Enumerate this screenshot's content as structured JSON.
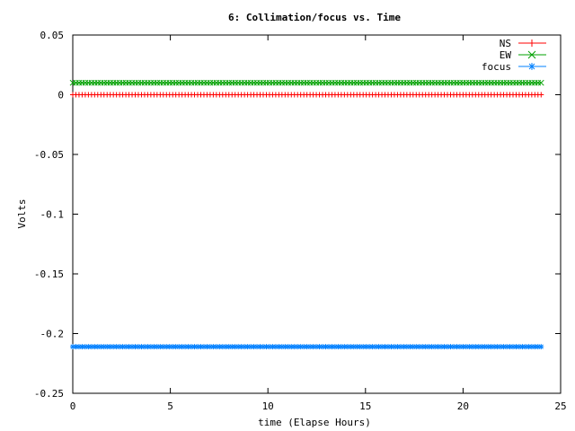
{
  "chart_data": {
    "type": "line",
    "title": "6: Collimation/focus vs. Time",
    "xlabel": "time (Elapse Hours)",
    "ylabel": "Volts",
    "xlim": [
      0,
      25
    ],
    "ylim": [
      -0.25,
      0.05
    ],
    "xticks": [
      0,
      5,
      10,
      15,
      20,
      25
    ],
    "xtick_labels": [
      "0",
      "5",
      "10",
      "15",
      "20",
      "25"
    ],
    "yticks": [
      0.05,
      0,
      -0.05,
      -0.1,
      -0.15,
      -0.2,
      -0.25
    ],
    "ytick_labels": [
      "0.05",
      "0",
      "-0.05",
      "-0.1",
      "-0.15",
      "-0.2",
      "-0.25"
    ],
    "grid": false,
    "legend_position": "top-right",
    "x_range": [
      0,
      24
    ],
    "series": [
      {
        "name": "NS",
        "color": "#ff0000",
        "marker": "plus",
        "y": 0.0
      },
      {
        "name": "EW",
        "color": "#00a000",
        "marker": "cross",
        "y": 0.01
      },
      {
        "name": "focus",
        "color": "#0080ff",
        "marker": "star",
        "y": -0.211
      }
    ]
  }
}
